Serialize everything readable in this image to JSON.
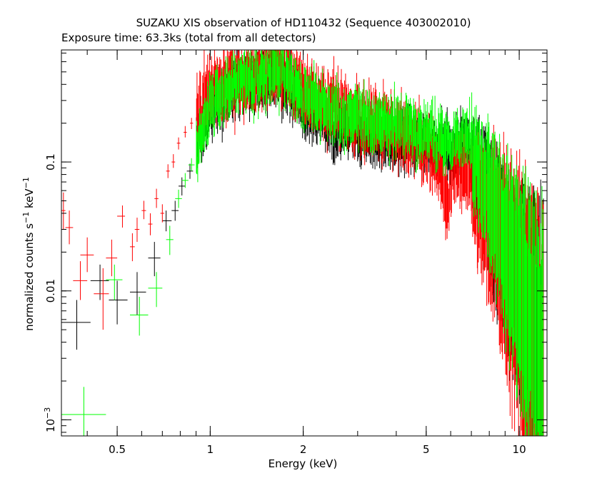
{
  "chart_data": {
    "type": "scatter",
    "title": "SUZAKU XIS observation of HD110432 (Sequence 403002010)",
    "subtitle": "Exposure time: 63.3ks (total from all detectors)",
    "xlabel": "Energy (keV)",
    "ylabel_parts": {
      "prefix": "normalized counts s",
      "s_exp": "−1",
      "mid": " keV",
      "kev_exp": "−1"
    },
    "x_scale": "log",
    "y_scale": "log",
    "xlim": [
      0.33,
      12.3
    ],
    "ylim": [
      0.00075,
      0.74
    ],
    "x_ticks": [
      {
        "value": 0.5,
        "label": "0.5"
      },
      {
        "value": 1,
        "label": "1"
      },
      {
        "value": 2,
        "label": "2"
      },
      {
        "value": 5,
        "label": "5"
      },
      {
        "value": 10,
        "label": "10"
      }
    ],
    "y_ticks": [
      {
        "value": 0.1,
        "label": "0.1"
      },
      {
        "value": 0.01,
        "label": "0.01"
      },
      {
        "value": 0.001,
        "label": "10",
        "exp": "−3"
      }
    ],
    "grid": false,
    "legend": "none",
    "series": [
      {
        "color": "#000000",
        "low_energy_points": [
          {
            "x": 0.37,
            "xlo": 0.33,
            "xhi": 0.41,
            "y": 0.0057,
            "ylo": 0.0035,
            "yhi": 0.0085
          },
          {
            "x": 0.44,
            "xlo": 0.41,
            "xhi": 0.47,
            "y": 0.012,
            "ylo": 0.0085,
            "yhi": 0.016
          },
          {
            "x": 0.5,
            "xlo": 0.47,
            "xhi": 0.54,
            "y": 0.0085,
            "ylo": 0.0055,
            "yhi": 0.012
          },
          {
            "x": 0.58,
            "xlo": 0.55,
            "xhi": 0.62,
            "y": 0.0098,
            "ylo": 0.0065,
            "yhi": 0.014
          },
          {
            "x": 0.66,
            "xlo": 0.63,
            "xhi": 0.69,
            "y": 0.018,
            "ylo": 0.013,
            "yhi": 0.024
          },
          {
            "x": 0.72,
            "xlo": 0.7,
            "xhi": 0.75,
            "y": 0.035,
            "ylo": 0.029,
            "yhi": 0.042
          },
          {
            "x": 0.77,
            "xlo": 0.75,
            "xhi": 0.79,
            "y": 0.042,
            "ylo": 0.035,
            "yhi": 0.05
          },
          {
            "x": 0.81,
            "xlo": 0.79,
            "xhi": 0.83,
            "y": 0.065,
            "ylo": 0.055,
            "yhi": 0.076
          },
          {
            "x": 0.86,
            "xlo": 0.84,
            "xhi": 0.88,
            "y": 0.085,
            "ylo": 0.074,
            "yhi": 0.097
          }
        ],
        "continuum": [
          {
            "x": 0.9,
            "y": 0.13
          },
          {
            "x": 1.0,
            "y": 0.26
          },
          {
            "x": 1.1,
            "y": 0.33
          },
          {
            "x": 1.2,
            "y": 0.38
          },
          {
            "x": 1.35,
            "y": 0.41
          },
          {
            "x": 1.5,
            "y": 0.44
          },
          {
            "x": 1.7,
            "y": 0.44
          },
          {
            "x": 1.85,
            "y": 0.36
          },
          {
            "x": 2.0,
            "y": 0.25
          },
          {
            "x": 2.5,
            "y": 0.19
          },
          {
            "x": 3.0,
            "y": 0.18
          },
          {
            "x": 3.5,
            "y": 0.16
          },
          {
            "x": 4.0,
            "y": 0.15
          },
          {
            "x": 4.5,
            "y": 0.15
          },
          {
            "x": 5.0,
            "y": 0.14
          },
          {
            "x": 5.5,
            "y": 0.13
          },
          {
            "x": 6.0,
            "y": 0.12
          },
          {
            "x": 6.4,
            "y": 0.13
          },
          {
            "x": 6.7,
            "y": 0.15
          },
          {
            "x": 7.0,
            "y": 0.11
          },
          {
            "x": 7.5,
            "y": 0.075
          },
          {
            "x": 8.0,
            "y": 0.045
          },
          {
            "x": 9.0,
            "y": 0.02
          },
          {
            "x": 10.0,
            "y": 0.009
          },
          {
            "x": 11.0,
            "y": 0.0045
          },
          {
            "x": 12.0,
            "y": 0.0025
          }
        ],
        "scatter": 0.18
      },
      {
        "color": "#ff0000",
        "low_energy_points": [
          {
            "x": 0.335,
            "xlo": 0.33,
            "xhi": 0.34,
            "y": 0.042,
            "ylo": 0.03,
            "yhi": 0.058
          },
          {
            "x": 0.35,
            "xlo": 0.34,
            "xhi": 0.36,
            "y": 0.031,
            "ylo": 0.023,
            "yhi": 0.042
          },
          {
            "x": 0.38,
            "xlo": 0.36,
            "xhi": 0.4,
            "y": 0.012,
            "ylo": 0.0085,
            "yhi": 0.017
          },
          {
            "x": 0.4,
            "xlo": 0.38,
            "xhi": 0.42,
            "y": 0.019,
            "ylo": 0.014,
            "yhi": 0.026
          },
          {
            "x": 0.45,
            "xlo": 0.42,
            "xhi": 0.47,
            "y": 0.0095,
            "ylo": 0.005,
            "yhi": 0.015
          },
          {
            "x": 0.48,
            "xlo": 0.46,
            "xhi": 0.5,
            "y": 0.018,
            "ylo": 0.013,
            "yhi": 0.025
          },
          {
            "x": 0.52,
            "xlo": 0.5,
            "xhi": 0.53,
            "y": 0.038,
            "ylo": 0.031,
            "yhi": 0.046
          },
          {
            "x": 0.56,
            "xlo": 0.55,
            "xhi": 0.57,
            "y": 0.022,
            "ylo": 0.017,
            "yhi": 0.028
          },
          {
            "x": 0.58,
            "xlo": 0.57,
            "xhi": 0.59,
            "y": 0.03,
            "ylo": 0.024,
            "yhi": 0.037
          },
          {
            "x": 0.61,
            "xlo": 0.6,
            "xhi": 0.62,
            "y": 0.042,
            "ylo": 0.036,
            "yhi": 0.05
          },
          {
            "x": 0.64,
            "xlo": 0.63,
            "xhi": 0.65,
            "y": 0.033,
            "ylo": 0.027,
            "yhi": 0.04
          },
          {
            "x": 0.67,
            "xlo": 0.66,
            "xhi": 0.68,
            "y": 0.052,
            "ylo": 0.044,
            "yhi": 0.062
          },
          {
            "x": 0.7,
            "xlo": 0.69,
            "xhi": 0.71,
            "y": 0.04,
            "ylo": 0.034,
            "yhi": 0.047
          },
          {
            "x": 0.73,
            "xlo": 0.72,
            "xhi": 0.74,
            "y": 0.085,
            "ylo": 0.075,
            "yhi": 0.096
          },
          {
            "x": 0.76,
            "xlo": 0.75,
            "xhi": 0.77,
            "y": 0.1,
            "ylo": 0.09,
            "yhi": 0.115
          },
          {
            "x": 0.79,
            "xlo": 0.78,
            "xhi": 0.8,
            "y": 0.14,
            "ylo": 0.125,
            "yhi": 0.155
          },
          {
            "x": 0.83,
            "xlo": 0.82,
            "xhi": 0.84,
            "y": 0.17,
            "ylo": 0.155,
            "yhi": 0.19
          },
          {
            "x": 0.87,
            "xlo": 0.86,
            "xhi": 0.88,
            "y": 0.2,
            "ylo": 0.18,
            "yhi": 0.22
          }
        ],
        "continuum": [
          {
            "x": 0.9,
            "y": 0.22
          },
          {
            "x": 1.0,
            "y": 0.36
          },
          {
            "x": 1.1,
            "y": 0.4
          },
          {
            "x": 1.2,
            "y": 0.42
          },
          {
            "x": 1.35,
            "y": 0.47
          },
          {
            "x": 1.5,
            "y": 0.5
          },
          {
            "x": 1.7,
            "y": 0.52
          },
          {
            "x": 1.85,
            "y": 0.44
          },
          {
            "x": 2.0,
            "y": 0.34
          },
          {
            "x": 2.5,
            "y": 0.27
          },
          {
            "x": 3.0,
            "y": 0.22
          },
          {
            "x": 3.5,
            "y": 0.19
          },
          {
            "x": 4.0,
            "y": 0.17
          },
          {
            "x": 4.5,
            "y": 0.15
          },
          {
            "x": 5.0,
            "y": 0.12
          },
          {
            "x": 5.5,
            "y": 0.1
          },
          {
            "x": 5.9,
            "y": 0.04
          },
          {
            "x": 6.1,
            "y": 0.09
          },
          {
            "x": 6.5,
            "y": 0.09
          },
          {
            "x": 7.0,
            "y": 0.07
          },
          {
            "x": 7.5,
            "y": 0.05
          },
          {
            "x": 8.0,
            "y": 0.035
          },
          {
            "x": 9.0,
            "y": 0.018
          },
          {
            "x": 10.0,
            "y": 0.008
          },
          {
            "x": 11.0,
            "y": 0.0035
          },
          {
            "x": 12.0,
            "y": 0.0012
          }
        ],
        "scatter": 0.22
      },
      {
        "color": "#00ff00",
        "low_energy_points": [
          {
            "x": 0.39,
            "xlo": 0.33,
            "xhi": 0.46,
            "y": 0.0011,
            "ylo": 0.00075,
            "yhi": 0.0018
          },
          {
            "x": 0.49,
            "xlo": 0.46,
            "xhi": 0.52,
            "y": 0.0122,
            "ylo": 0.0085,
            "yhi": 0.016
          },
          {
            "x": 0.59,
            "xlo": 0.55,
            "xhi": 0.63,
            "y": 0.0065,
            "ylo": 0.0045,
            "yhi": 0.009
          },
          {
            "x": 0.67,
            "xlo": 0.63,
            "xhi": 0.7,
            "y": 0.0105,
            "ylo": 0.0075,
            "yhi": 0.014
          },
          {
            "x": 0.74,
            "xlo": 0.72,
            "xhi": 0.76,
            "y": 0.025,
            "ylo": 0.019,
            "yhi": 0.032
          },
          {
            "x": 0.79,
            "xlo": 0.77,
            "xhi": 0.81,
            "y": 0.052,
            "ylo": 0.044,
            "yhi": 0.061
          },
          {
            "x": 0.83,
            "xlo": 0.81,
            "xhi": 0.85,
            "y": 0.072,
            "ylo": 0.063,
            "yhi": 0.082
          },
          {
            "x": 0.87,
            "xlo": 0.85,
            "xhi": 0.89,
            "y": 0.095,
            "ylo": 0.085,
            "yhi": 0.107
          }
        ],
        "continuum": [
          {
            "x": 0.9,
            "y": 0.12
          },
          {
            "x": 1.0,
            "y": 0.28
          },
          {
            "x": 1.1,
            "y": 0.35
          },
          {
            "x": 1.2,
            "y": 0.4
          },
          {
            "x": 1.35,
            "y": 0.45
          },
          {
            "x": 1.5,
            "y": 0.47
          },
          {
            "x": 1.7,
            "y": 0.47
          },
          {
            "x": 1.85,
            "y": 0.4
          },
          {
            "x": 2.0,
            "y": 0.31
          },
          {
            "x": 2.5,
            "y": 0.25
          },
          {
            "x": 3.0,
            "y": 0.22
          },
          {
            "x": 3.5,
            "y": 0.2
          },
          {
            "x": 4.0,
            "y": 0.19
          },
          {
            "x": 4.5,
            "y": 0.18
          },
          {
            "x": 5.0,
            "y": 0.17
          },
          {
            "x": 5.5,
            "y": 0.15
          },
          {
            "x": 6.0,
            "y": 0.14
          },
          {
            "x": 6.4,
            "y": 0.15
          },
          {
            "x": 6.7,
            "y": 0.19
          },
          {
            "x": 7.0,
            "y": 0.13
          },
          {
            "x": 7.5,
            "y": 0.08
          },
          {
            "x": 8.0,
            "y": 0.05
          },
          {
            "x": 9.0,
            "y": 0.022
          },
          {
            "x": 10.0,
            "y": 0.01
          },
          {
            "x": 11.0,
            "y": 0.005
          },
          {
            "x": 12.0,
            "y": 0.0025
          }
        ],
        "scatter": 0.18
      }
    ]
  }
}
